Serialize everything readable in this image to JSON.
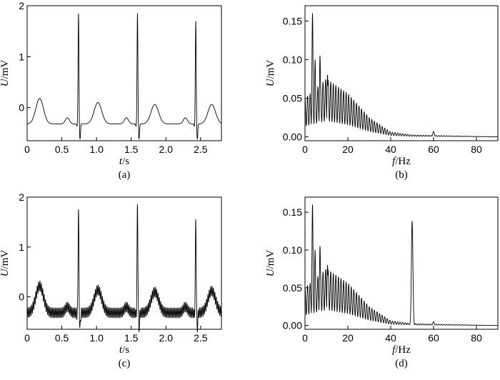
{
  "chart_data": [
    {
      "id": "a",
      "type": "line",
      "panel_label": "(a)",
      "xlabel_var": "t",
      "xlabel_unit": "/s",
      "ylabel_var": "U",
      "ylabel_unit": "/mV",
      "xlim": [
        0,
        2.8
      ],
      "ylim": [
        -0.65,
        2.0
      ],
      "xticks": [
        0,
        0.5,
        1.0,
        1.5,
        2.0,
        2.5
      ],
      "xtick_labels": [
        "0",
        "0.5",
        "1.0",
        "1.5",
        "2.0",
        "2.5"
      ],
      "yticks": [
        0,
        1,
        2
      ],
      "ytick_labels": [
        "0",
        "1",
        "2"
      ],
      "grid": false,
      "series": [
        {
          "baseline": -0.32,
          "r_peaks": {
            "t": [
              0.74,
              1.59,
              2.43
            ],
            "amplitude": [
              1.85,
              1.85,
              1.7
            ]
          },
          "s_depth": -0.62,
          "t_waves": {
            "t": [
              0.18,
              1.02,
              1.84,
              2.66
            ],
            "amplitude": [
              0.18,
              0.1,
              0.06,
              0.06
            ]
          },
          "p_waves": {
            "t": [
              0.58,
              1.43,
              2.28
            ],
            "amplitude": [
              -0.2,
              -0.2,
              -0.2
            ]
          },
          "noise_50hz_amplitude": 0.0
        }
      ]
    },
    {
      "id": "b",
      "type": "line",
      "panel_label": "(b)",
      "xlabel_var": "f",
      "xlabel_unit": "/Hz",
      "ylabel_var": "U",
      "ylabel_unit": "/mV",
      "xlim": [
        0,
        90
      ],
      "ylim": [
        -0.005,
        0.17
      ],
      "xticks": [
        0,
        20,
        40,
        60,
        80
      ],
      "xtick_labels": [
        "0",
        "20",
        "40",
        "60",
        "80"
      ],
      "yticks": [
        0,
        0.05,
        0.1,
        0.15
      ],
      "ytick_labels": [
        "0.00",
        "0.05",
        "0.10",
        "0.15"
      ],
      "grid": false,
      "series": [
        {
          "peaks": [
            {
              "f": 3.5,
              "U": 0.16
            },
            {
              "f": 4.7,
              "U": 0.1
            },
            {
              "f": 7.0,
              "U": 0.105
            },
            {
              "f": 10.5,
              "U": 0.08
            },
            {
              "f": 60,
              "U": 0.007
            }
          ],
          "envelope": [
            [
              0,
              0.04
            ],
            [
              10,
              0.06
            ],
            [
              20,
              0.045
            ],
            [
              30,
              0.02
            ],
            [
              40,
              0.005
            ],
            [
              50,
              0.002
            ],
            [
              90,
              0.0
            ]
          ],
          "line_50hz_U": 0.0
        }
      ]
    },
    {
      "id": "c",
      "type": "line",
      "panel_label": "(c)",
      "xlabel_var": "t",
      "xlabel_unit": "/s",
      "ylabel_var": "U",
      "ylabel_unit": "/mV",
      "xlim": [
        0,
        2.8
      ],
      "ylim": [
        -0.65,
        2.0
      ],
      "xticks": [
        0,
        0.5,
        1.0,
        1.5,
        2.0,
        2.5
      ],
      "xtick_labels": [
        "0",
        "0.5",
        "1.0",
        "1.5",
        "2.0",
        "2.5"
      ],
      "yticks": [
        0,
        1,
        2
      ],
      "ytick_labels": [
        "0",
        "1",
        "2"
      ],
      "grid": false,
      "series": [
        {
          "baseline": -0.32,
          "r_peaks": {
            "t": [
              0.74,
              1.59,
              2.43
            ],
            "amplitude": [
              1.75,
              1.85,
              1.55
            ]
          },
          "s_depth": -0.62,
          "t_waves": {
            "t": [
              0.18,
              1.02,
              1.84,
              2.66
            ],
            "amplitude": [
              0.22,
              0.14,
              0.1,
              0.12
            ]
          },
          "p_waves": {
            "t": [
              0.58,
              1.43,
              2.28
            ],
            "amplitude": [
              -0.2,
              -0.2,
              -0.2
            ]
          },
          "noise_50hz_amplitude": 0.1
        }
      ]
    },
    {
      "id": "d",
      "type": "line",
      "panel_label": "(d)",
      "xlabel_var": "f",
      "xlabel_unit": "/Hz",
      "ylabel_var": "U",
      "ylabel_unit": "/mV",
      "xlim": [
        0,
        90
      ],
      "ylim": [
        -0.005,
        0.17
      ],
      "xticks": [
        0,
        20,
        40,
        60,
        80
      ],
      "xtick_labels": [
        "0",
        "20",
        "40",
        "60",
        "80"
      ],
      "yticks": [
        0,
        0.05,
        0.1,
        0.15
      ],
      "ytick_labels": [
        "0.00",
        "0.05",
        "0.10",
        "0.15"
      ],
      "grid": false,
      "series": [
        {
          "peaks": [
            {
              "f": 3.5,
              "U": 0.16
            },
            {
              "f": 4.7,
              "U": 0.1
            },
            {
              "f": 7.0,
              "U": 0.105
            },
            {
              "f": 10.5,
              "U": 0.08
            },
            {
              "f": 50,
              "U": 0.138
            },
            {
              "f": 60,
              "U": 0.005
            }
          ],
          "envelope": [
            [
              0,
              0.04
            ],
            [
              10,
              0.06
            ],
            [
              20,
              0.045
            ],
            [
              30,
              0.02
            ],
            [
              40,
              0.005
            ],
            [
              50,
              0.002
            ],
            [
              90,
              0.0
            ]
          ],
          "line_50hz_U": 0.138
        }
      ]
    }
  ]
}
